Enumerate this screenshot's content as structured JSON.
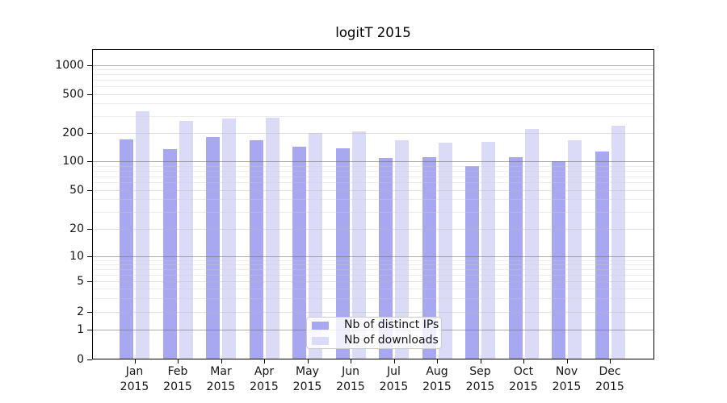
{
  "chart_data": {
    "type": "bar",
    "title": "logitT 2015",
    "categories": [
      "Jan 2015",
      "Feb 2015",
      "Mar 2015",
      "Apr 2015",
      "May 2015",
      "Jun 2015",
      "Jul 2015",
      "Aug 2015",
      "Sep 2015",
      "Oct 2015",
      "Nov 2015",
      "Dec 2015"
    ],
    "series": [
      {
        "name": "Nb of distinct IPs",
        "color": "#a8a8f0",
        "values": [
          170,
          135,
          182,
          168,
          143,
          139,
          109,
          110,
          90,
          112,
          100,
          128
        ]
      },
      {
        "name": "Nb of downloads",
        "color": "#dbdbf8",
        "values": [
          335,
          268,
          281,
          286,
          201,
          208,
          166,
          158,
          162,
          220,
          166,
          239
        ]
      }
    ],
    "y_axis": {
      "ticks": [
        0,
        1,
        2,
        5,
        10,
        20,
        50,
        100,
        200,
        500,
        1000
      ],
      "scale": "symlog-like",
      "minor_factors": [
        3,
        4,
        6,
        7,
        8,
        9
      ]
    },
    "x_axis": {
      "tick_label_lines": 2
    },
    "legend": {
      "position": "lower-center"
    },
    "grid": true,
    "background": "#ffffff"
  }
}
